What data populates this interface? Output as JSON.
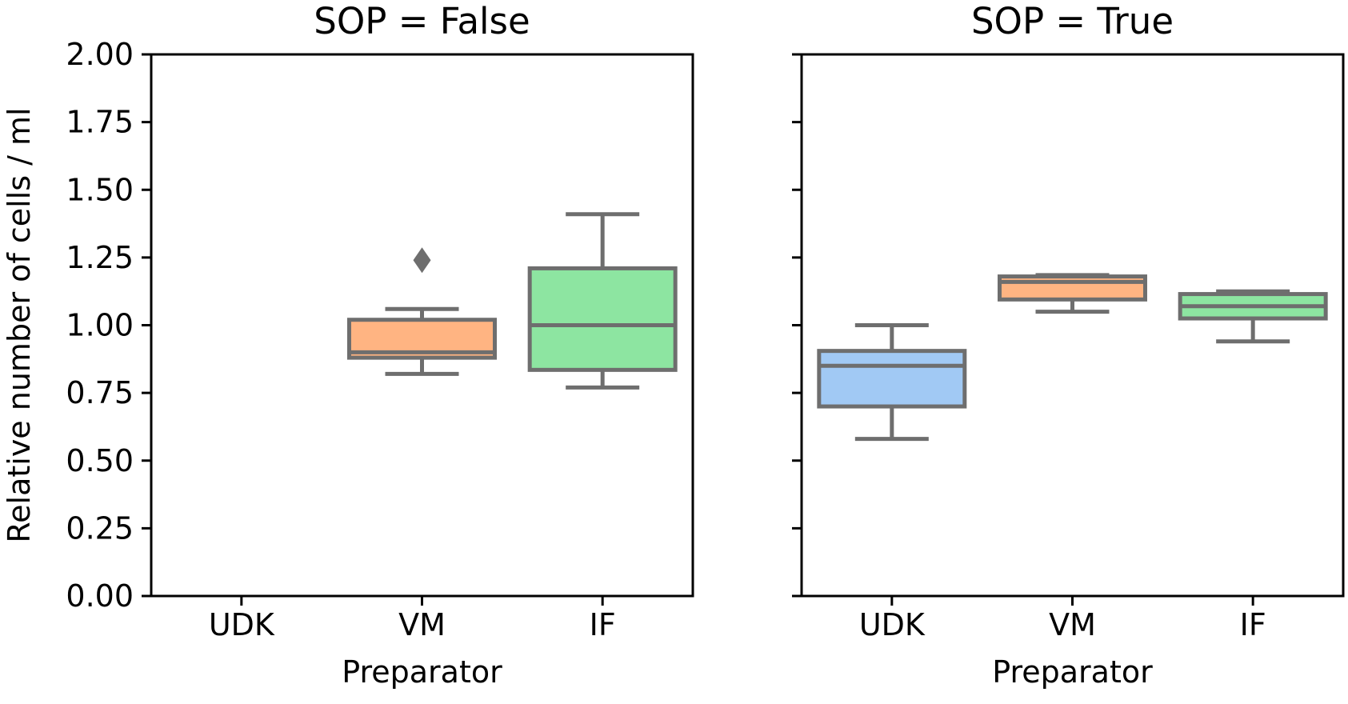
{
  "chart_data": {
    "type": "box",
    "ylabel": "Relative number of cells / ml",
    "xlabel": "Preparator",
    "ylim": [
      0,
      2.0
    ],
    "yticks": [
      "0.00",
      "0.25",
      "0.50",
      "0.75",
      "1.00",
      "1.25",
      "1.50",
      "1.75",
      "2.00"
    ],
    "categories": [
      "UDK",
      "VM",
      "IF"
    ],
    "colors": {
      "UDK": "#a1c9f4",
      "VM": "#ffb482",
      "IF": "#8de5a1"
    },
    "line_color": "#6e6e6e",
    "panels": [
      {
        "title": "SOP = False",
        "boxes": [
          {
            "category": "VM",
            "whisker_low": 0.82,
            "q1": 0.88,
            "median": 0.9,
            "q3": 1.02,
            "whisker_high": 1.06,
            "outliers": [
              1.24
            ]
          },
          {
            "category": "IF",
            "whisker_low": 0.77,
            "q1": 0.835,
            "median": 1.0,
            "q3": 1.21,
            "whisker_high": 1.41,
            "outliers": []
          }
        ]
      },
      {
        "title": "SOP = True",
        "boxes": [
          {
            "category": "UDK",
            "whisker_low": 0.58,
            "q1": 0.7,
            "median": 0.85,
            "q3": 0.905,
            "whisker_high": 1.0,
            "outliers": []
          },
          {
            "category": "VM",
            "whisker_low": 1.05,
            "q1": 1.095,
            "median": 1.16,
            "q3": 1.18,
            "whisker_high": 1.185,
            "outliers": []
          },
          {
            "category": "IF",
            "whisker_low": 0.94,
            "q1": 1.025,
            "median": 1.07,
            "q3": 1.115,
            "whisker_high": 1.125,
            "outliers": []
          }
        ]
      }
    ]
  }
}
